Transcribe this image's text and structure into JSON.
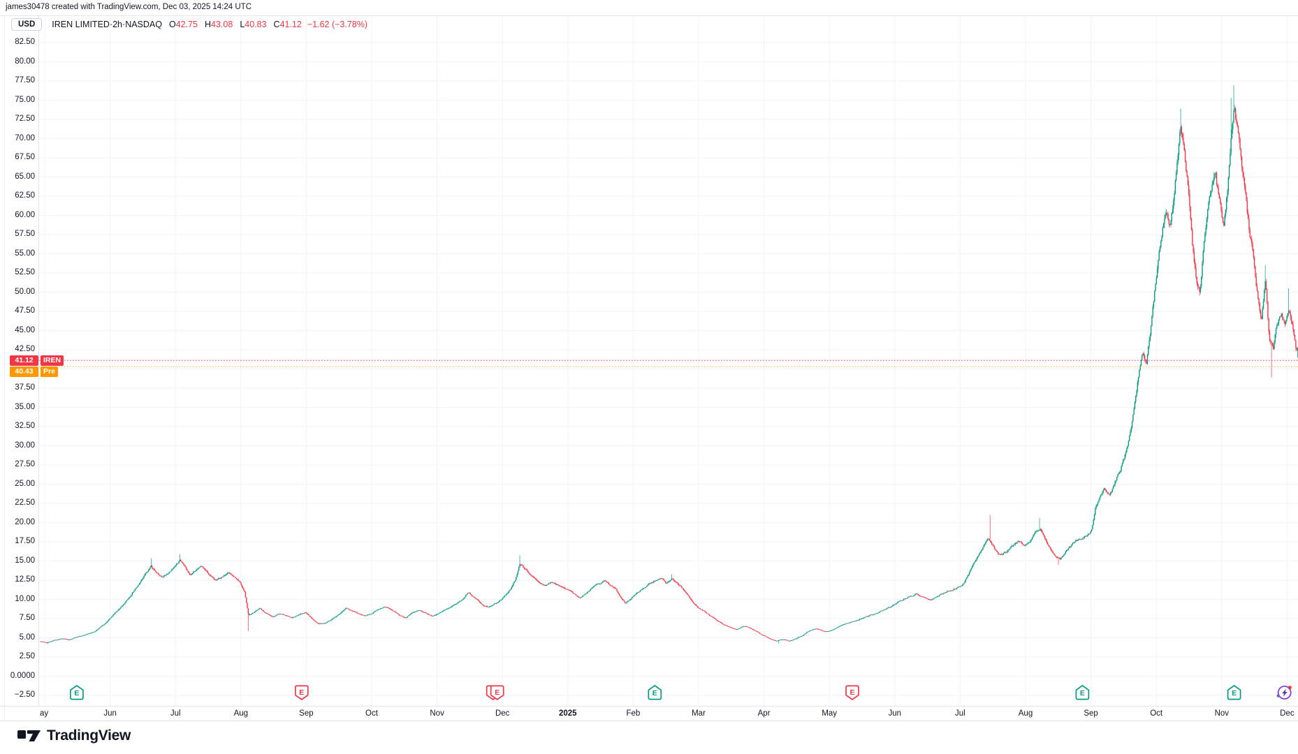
{
  "attribution": "james30478 created with TradingView.com, Dec 03, 2025 14:24 UTC",
  "header": {
    "currency": "USD",
    "symbol": "IREN LIMITED",
    "separator1": " · ",
    "interval": "2h",
    "separator2": " · ",
    "exchange": "NASDAQ",
    "o_label": "O",
    "o": "42.75",
    "h_label": "H",
    "h": "43.08",
    "l_label": "L",
    "l": "40.83",
    "c_label": "C",
    "c": "41.12",
    "change": "−1.62 (−3.78%)"
  },
  "price_tags": {
    "last": {
      "value": "41.12",
      "name": "IREN",
      "price": 41.12,
      "color": "#f23645"
    },
    "pre": {
      "value": "40.43",
      "name": "Pre",
      "price": 40.43,
      "color": "#ff9800"
    }
  },
  "footer": {
    "logo_text": "TradingView"
  },
  "colors": {
    "up": "#089981",
    "down": "#f23645",
    "grid": "#f0f3fa",
    "axis_text": "#131722",
    "last_line": "#f23645",
    "pre_line": "#ff9800",
    "flash_purple": "#8440d6",
    "flash_bolt": "#5e35b1",
    "flash_dot_red": "#f23645",
    "flash_dot_blue": "#5c6bc0"
  },
  "chart_data": {
    "type": "candlestick",
    "title": "IREN LIMITED · 2h · NASDAQ",
    "symbol": "IREN",
    "timeframe": "2h",
    "exchange": "NASDAQ",
    "ohlc_current": {
      "open": 42.75,
      "high": 43.08,
      "low": 40.83,
      "close": 41.12,
      "change": -1.62,
      "change_pct": -3.78
    },
    "last_price": 41.12,
    "premarket_price": 40.43,
    "y_axis": {
      "min": -2.5,
      "max": 82.5,
      "step": 2.5,
      "grid": true,
      "ticks": [
        {
          "t": "82.50",
          "p": 82.5
        },
        {
          "t": "80.00",
          "p": 80
        },
        {
          "t": "77.50",
          "p": 77.5
        },
        {
          "t": "75.00",
          "p": 75
        },
        {
          "t": "72.50",
          "p": 72.5
        },
        {
          "t": "70.00",
          "p": 70
        },
        {
          "t": "67.50",
          "p": 67.5
        },
        {
          "t": "65.00",
          "p": 65
        },
        {
          "t": "62.50",
          "p": 62.5
        },
        {
          "t": "60.00",
          "p": 60
        },
        {
          "t": "57.50",
          "p": 57.5
        },
        {
          "t": "55.00",
          "p": 55
        },
        {
          "t": "52.50",
          "p": 52.5
        },
        {
          "t": "50.00",
          "p": 50
        },
        {
          "t": "47.50",
          "p": 47.5
        },
        {
          "t": "45.00",
          "p": 45
        },
        {
          "t": "42.50",
          "p": 42.5
        },
        {
          "t": "37.50",
          "p": 37.5
        },
        {
          "t": "35.00",
          "p": 35
        },
        {
          "t": "32.50",
          "p": 32.5
        },
        {
          "t": "30.00",
          "p": 30
        },
        {
          "t": "27.50",
          "p": 27.5
        },
        {
          "t": "25.00",
          "p": 25
        },
        {
          "t": "22.50",
          "p": 22.5
        },
        {
          "t": "20.00",
          "p": 20
        },
        {
          "t": "17.50",
          "p": 17.5
        },
        {
          "t": "15.00",
          "p": 15
        },
        {
          "t": "12.50",
          "p": 12.5
        },
        {
          "t": "10.00",
          "p": 10
        },
        {
          "t": "7.50",
          "p": 7.5
        },
        {
          "t": "5.00",
          "p": 5
        },
        {
          "t": "2.50",
          "p": 2.5
        },
        {
          "t": "0.0000",
          "p": 0
        },
        {
          "t": "−2.50",
          "p": -2.5
        }
      ]
    },
    "x_axis": {
      "start": "May 2024",
      "end": "Dec 2025",
      "labels": [
        {
          "t": "ay",
          "m": 0,
          "align": "left"
        },
        {
          "t": "Jun",
          "m": 1
        },
        {
          "t": "Jul",
          "m": 2
        },
        {
          "t": "Aug",
          "m": 3
        },
        {
          "t": "Sep",
          "m": 4
        },
        {
          "t": "Oct",
          "m": 5
        },
        {
          "t": "Nov",
          "m": 6
        },
        {
          "t": "Dec",
          "m": 7
        },
        {
          "t": "2025",
          "m": 8,
          "bold": true
        },
        {
          "t": "Feb",
          "m": 9
        },
        {
          "t": "Mar",
          "m": 10
        },
        {
          "t": "Apr",
          "m": 11
        },
        {
          "t": "May",
          "m": 12
        },
        {
          "t": "Jun",
          "m": 13
        },
        {
          "t": "Jul",
          "m": 14
        },
        {
          "t": "Aug",
          "m": 15
        },
        {
          "t": "Sep",
          "m": 16
        },
        {
          "t": "Oct",
          "m": 17
        },
        {
          "t": "Nov",
          "m": 18
        },
        {
          "t": "Dec",
          "m": 19
        }
      ]
    },
    "trend_anchors": [
      [
        -0.09,
        4.5
      ],
      [
        0,
        4.35
      ],
      [
        0.12,
        4.65
      ],
      [
        0.24,
        4.9
      ],
      [
        0.36,
        4.75
      ],
      [
        0.5,
        5.2
      ],
      [
        0.62,
        5.45
      ],
      [
        0.75,
        5.9
      ],
      [
        0.88,
        6.7
      ],
      [
        1,
        7.8
      ],
      [
        1.12,
        8.8
      ],
      [
        1.25,
        10.1
      ],
      [
        1.38,
        11.6
      ],
      [
        1.5,
        13.1
      ],
      [
        1.6,
        14.3
      ],
      [
        1.68,
        13.4
      ],
      [
        1.76,
        12.9
      ],
      [
        1.86,
        13.4
      ],
      [
        1.96,
        14.2
      ],
      [
        2.04,
        15.1
      ],
      [
        2.12,
        14.2
      ],
      [
        2.2,
        13.2
      ],
      [
        2.3,
        13.9
      ],
      [
        2.38,
        14.3
      ],
      [
        2.48,
        13.3
      ],
      [
        2.58,
        12.5
      ],
      [
        2.68,
        12.9
      ],
      [
        2.78,
        13.5
      ],
      [
        2.88,
        12.8
      ],
      [
        2.96,
        12.2
      ],
      [
        3.03,
        11
      ],
      [
        3.09,
        7.9
      ],
      [
        3.16,
        8.2
      ],
      [
        3.26,
        8.8
      ],
      [
        3.36,
        8.2
      ],
      [
        3.46,
        7.7
      ],
      [
        3.56,
        8.1
      ],
      [
        3.66,
        7.9
      ],
      [
        3.76,
        7.6
      ],
      [
        3.86,
        8
      ],
      [
        3.96,
        8.3
      ],
      [
        4.06,
        7.5
      ],
      [
        4.16,
        6.8
      ],
      [
        4.26,
        6.9
      ],
      [
        4.36,
        7.4
      ],
      [
        4.48,
        8.1
      ],
      [
        4.58,
        8.8
      ],
      [
        4.68,
        8.5
      ],
      [
        4.78,
        8.1
      ],
      [
        4.88,
        7.9
      ],
      [
        4.98,
        8.2
      ],
      [
        5.08,
        8.7
      ],
      [
        5.18,
        9
      ],
      [
        5.28,
        8.6
      ],
      [
        5.4,
        7.9
      ],
      [
        5.5,
        7.6
      ],
      [
        5.6,
        8.3
      ],
      [
        5.7,
        8.6
      ],
      [
        5.8,
        8.2
      ],
      [
        5.9,
        7.8
      ],
      [
        6,
        8.2
      ],
      [
        6.1,
        8.6
      ],
      [
        6.2,
        9.1
      ],
      [
        6.3,
        9.6
      ],
      [
        6.38,
        10.1
      ],
      [
        6.45,
        11
      ],
      [
        6.52,
        10.4
      ],
      [
        6.6,
        9.9
      ],
      [
        6.68,
        9.2
      ],
      [
        6.76,
        9
      ],
      [
        6.85,
        9.4
      ],
      [
        6.95,
        9.9
      ],
      [
        7.02,
        10.5
      ],
      [
        7.1,
        11.4
      ],
      [
        7.18,
        12.8
      ],
      [
        7.24,
        14.7
      ],
      [
        7.3,
        14.1
      ],
      [
        7.38,
        13.4
      ],
      [
        7.46,
        12.8
      ],
      [
        7.55,
        12.1
      ],
      [
        7.63,
        11.8
      ],
      [
        7.72,
        12.3
      ],
      [
        7.8,
        12
      ],
      [
        7.9,
        11.5
      ],
      [
        8,
        11.2
      ],
      [
        8.08,
        10.6
      ],
      [
        8.16,
        10.2
      ],
      [
        8.26,
        10.9
      ],
      [
        8.36,
        11.6
      ],
      [
        8.46,
        12.1
      ],
      [
        8.54,
        12.4
      ],
      [
        8.62,
        11.8
      ],
      [
        8.7,
        11.4
      ],
      [
        8.78,
        10.3
      ],
      [
        8.85,
        9.5
      ],
      [
        8.92,
        10
      ],
      [
        9,
        10.6
      ],
      [
        9.1,
        11.3
      ],
      [
        9.2,
        11.9
      ],
      [
        9.3,
        12.4
      ],
      [
        9.4,
        12.8
      ],
      [
        9.48,
        12.1
      ],
      [
        9.56,
        12.7
      ],
      [
        9.64,
        12.2
      ],
      [
        9.72,
        11.5
      ],
      [
        9.8,
        10.6
      ],
      [
        9.88,
        9.7
      ],
      [
        9.96,
        8.9
      ],
      [
        10.06,
        8.4
      ],
      [
        10.16,
        7.8
      ],
      [
        10.26,
        7.2
      ],
      [
        10.36,
        6.7
      ],
      [
        10.46,
        6.3
      ],
      [
        10.56,
        6.1
      ],
      [
        10.66,
        6.5
      ],
      [
        10.76,
        6.3
      ],
      [
        10.86,
        5.8
      ],
      [
        10.96,
        5.3
      ],
      [
        11.06,
        4.9
      ],
      [
        11.16,
        4.6
      ],
      [
        11.26,
        4.8
      ],
      [
        11.36,
        4.6
      ],
      [
        11.46,
        4.9
      ],
      [
        11.56,
        5.3
      ],
      [
        11.66,
        5.9
      ],
      [
        11.76,
        6.2
      ],
      [
        11.86,
        5.9
      ],
      [
        11.96,
        5.8
      ],
      [
        12.06,
        6.2
      ],
      [
        12.18,
        6.7
      ],
      [
        12.3,
        7
      ],
      [
        12.42,
        7.4
      ],
      [
        12.55,
        7.8
      ],
      [
        12.68,
        8.2
      ],
      [
        12.8,
        8.6
      ],
      [
        12.92,
        9.1
      ],
      [
        13.05,
        9.8
      ],
      [
        13.18,
        10.3
      ],
      [
        13.3,
        10.7
      ],
      [
        13.42,
        10.2
      ],
      [
        13.52,
        9.9
      ],
      [
        13.65,
        10.5
      ],
      [
        13.78,
        11
      ],
      [
        13.9,
        11.4
      ],
      [
        14,
        11.8
      ],
      [
        14.08,
        12.9
      ],
      [
        14.16,
        14.4
      ],
      [
        14.24,
        15.6
      ],
      [
        14.32,
        16.7
      ],
      [
        14.4,
        17.9
      ],
      [
        14.48,
        16.9
      ],
      [
        14.56,
        15.8
      ],
      [
        14.66,
        16.1
      ],
      [
        14.76,
        16.9
      ],
      [
        14.86,
        17.5
      ],
      [
        14.95,
        17.1
      ],
      [
        15.04,
        17.6
      ],
      [
        15.12,
        18.7
      ],
      [
        15.2,
        19.2
      ],
      [
        15.3,
        17.4
      ],
      [
        15.4,
        15.8
      ],
      [
        15.5,
        15.2
      ],
      [
        15.6,
        16.4
      ],
      [
        15.7,
        17.3
      ],
      [
        15.8,
        17.8
      ],
      [
        15.9,
        18.3
      ],
      [
        15.98,
        18.9
      ],
      [
        16.04,
        21.8
      ],
      [
        16.1,
        23.2
      ],
      [
        16.18,
        24.4
      ],
      [
        16.26,
        23.6
      ],
      [
        16.34,
        25.2
      ],
      [
        16.42,
        26.9
      ],
      [
        16.5,
        29
      ],
      [
        16.58,
        32
      ],
      [
        16.64,
        35.5
      ],
      [
        16.7,
        39
      ],
      [
        16.76,
        42.5
      ],
      [
        16.82,
        40.8
      ],
      [
        16.88,
        44.5
      ],
      [
        16.94,
        49.5
      ],
      [
        17,
        54
      ],
      [
        17.06,
        58
      ],
      [
        17.12,
        60.5
      ],
      [
        17.18,
        58.5
      ],
      [
        17.24,
        62
      ],
      [
        17.3,
        68
      ],
      [
        17.34,
        71.5
      ],
      [
        17.4,
        68.5
      ],
      [
        17.46,
        63.5
      ],
      [
        17.52,
        56.5
      ],
      [
        17.58,
        51.5
      ],
      [
        17.64,
        50
      ],
      [
        17.7,
        56.5
      ],
      [
        17.76,
        61
      ],
      [
        17.82,
        64
      ],
      [
        17.88,
        65
      ],
      [
        17.94,
        61.5
      ],
      [
        18,
        58.5
      ],
      [
        18.06,
        63.5
      ],
      [
        18.12,
        70.5
      ],
      [
        18.16,
        74
      ],
      [
        18.22,
        71
      ],
      [
        18.28,
        66.5
      ],
      [
        18.34,
        62
      ],
      [
        18.4,
        57.5
      ],
      [
        18.46,
        54.5
      ],
      [
        18.52,
        49.5
      ],
      [
        18.58,
        46.5
      ],
      [
        18.64,
        51.5
      ],
      [
        18.7,
        43.5
      ],
      [
        18.76,
        42.5
      ],
      [
        18.82,
        46
      ],
      [
        18.88,
        47
      ],
      [
        18.94,
        46.2
      ],
      [
        19,
        47.5
      ],
      [
        19.05,
        45.5
      ],
      [
        19.1,
        42.8
      ],
      [
        19.145,
        41.12
      ]
    ],
    "spikes": [
      {
        "m": 0.02,
        "low": 4.18
      },
      {
        "m": 1.6,
        "high": 15.35
      },
      {
        "m": 2.04,
        "high": 15.9
      },
      {
        "m": 3.09,
        "low": 5.9
      },
      {
        "m": 7.24,
        "high": 15.75
      },
      {
        "m": 9.56,
        "high": 13.25
      },
      {
        "m": 11.2,
        "low": 4.25
      },
      {
        "m": 14.43,
        "high": 21.0
      },
      {
        "m": 15.18,
        "high": 20.6
      },
      {
        "m": 15.48,
        "low": 14.5
      },
      {
        "m": 17.34,
        "high": 73.9
      },
      {
        "m": 18.12,
        "high": 75.3
      },
      {
        "m": 18.16,
        "high": 76.93
      },
      {
        "m": 18.64,
        "high": 53.5
      },
      {
        "m": 18.73,
        "low": 38.9
      },
      {
        "m": 19.0,
        "high": 50.5
      }
    ],
    "earnings_markers": [
      {
        "m": 0.49,
        "result": "beat"
      },
      {
        "m": 3.93,
        "result": "miss"
      },
      {
        "m": 6.92,
        "result": "miss",
        "double": true
      },
      {
        "m": 9.33,
        "result": "beat"
      },
      {
        "m": 12.35,
        "result": "miss"
      },
      {
        "m": 15.87,
        "result": "beat"
      },
      {
        "m": 18.19,
        "result": "beat"
      }
    ],
    "flash_icon_m": 18.96,
    "legend_position": "none",
    "grid": true
  }
}
